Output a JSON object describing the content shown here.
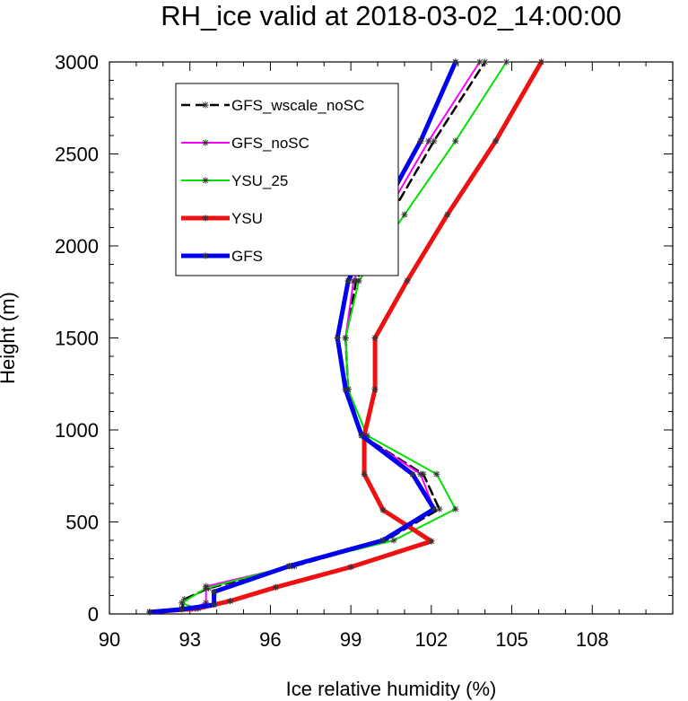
{
  "chart_data": {
    "type": "line",
    "title": "RH_ice valid at 2018-03-02_14:00:00",
    "xlabel": "Ice relative humidity (%)",
    "ylabel": "Height (m)",
    "xlim": [
      90,
      111
    ],
    "ylim": [
      0,
      3000
    ],
    "xticks": [
      90,
      93,
      96,
      99,
      102,
      105,
      108
    ],
    "yticks": [
      0,
      500,
      1000,
      1500,
      2000,
      2500,
      3000
    ],
    "grid": false,
    "legend_position": "top-left",
    "series": [
      {
        "name": "GFS_wscale_noSC",
        "color": "#000000",
        "width": 2.5,
        "dash": "10,6",
        "points": [
          [
            91.5,
            10
          ],
          [
            92.7,
            30
          ],
          [
            92.8,
            80
          ],
          [
            93.7,
            140
          ],
          [
            96.9,
            260
          ],
          [
            100.3,
            400
          ],
          [
            102.3,
            570
          ],
          [
            101.7,
            760
          ],
          [
            99.4,
            970
          ],
          [
            98.9,
            1220
          ],
          [
            98.8,
            1500
          ],
          [
            99.2,
            1810
          ],
          [
            100.5,
            2170
          ],
          [
            102.1,
            2570
          ],
          [
            104.0,
            3000
          ]
        ]
      },
      {
        "name": "GFS_noSC",
        "color": "#ff00ff",
        "width": 2,
        "dash": "",
        "points": [
          [
            91.5,
            10
          ],
          [
            93.0,
            25
          ],
          [
            93.6,
            60
          ],
          [
            93.6,
            150
          ],
          [
            96.8,
            260
          ],
          [
            100.2,
            400
          ],
          [
            102.1,
            570
          ],
          [
            101.6,
            760
          ],
          [
            99.4,
            970
          ],
          [
            98.9,
            1220
          ],
          [
            98.8,
            1500
          ],
          [
            99.1,
            1810
          ],
          [
            100.3,
            2170
          ],
          [
            101.9,
            2570
          ],
          [
            103.8,
            3000
          ]
        ]
      },
      {
        "name": "YSU_25",
        "color": "#00e000",
        "width": 2,
        "dash": "",
        "points": [
          [
            91.5,
            10
          ],
          [
            93.2,
            30
          ],
          [
            92.7,
            60
          ],
          [
            93.6,
            140
          ],
          [
            96.7,
            260
          ],
          [
            100.6,
            400
          ],
          [
            102.9,
            570
          ],
          [
            102.2,
            760
          ],
          [
            99.6,
            970
          ],
          [
            98.9,
            1220
          ],
          [
            98.8,
            1500
          ],
          [
            99.3,
            1810
          ],
          [
            101.0,
            2170
          ],
          [
            102.9,
            2570
          ],
          [
            104.8,
            3000
          ]
        ]
      },
      {
        "name": "YSU",
        "color": "#ee1111",
        "width": 5,
        "dash": "",
        "points": [
          [
            91.5,
            10
          ],
          [
            93.3,
            30
          ],
          [
            94.5,
            70
          ],
          [
            96.2,
            145
          ],
          [
            99.0,
            255
          ],
          [
            102.0,
            395
          ],
          [
            100.2,
            565
          ],
          [
            99.5,
            760
          ],
          [
            99.5,
            970
          ],
          [
            99.9,
            1220
          ],
          [
            99.9,
            1500
          ],
          [
            101.1,
            1810
          ],
          [
            102.6,
            2170
          ],
          [
            104.4,
            2570
          ],
          [
            106.1,
            3000
          ]
        ]
      },
      {
        "name": "GFS",
        "color": "#0000ee",
        "width": 5,
        "dash": "",
        "points": [
          [
            91.5,
            10
          ],
          [
            92.7,
            25
          ],
          [
            93.9,
            50
          ],
          [
            93.9,
            120
          ],
          [
            96.7,
            260
          ],
          [
            100.2,
            400
          ],
          [
            102.1,
            570
          ],
          [
            101.3,
            760
          ],
          [
            99.4,
            970
          ],
          [
            98.8,
            1220
          ],
          [
            98.5,
            1500
          ],
          [
            98.9,
            1810
          ],
          [
            100.1,
            2170
          ],
          [
            101.6,
            2570
          ],
          [
            102.9,
            3000
          ]
        ]
      }
    ]
  }
}
